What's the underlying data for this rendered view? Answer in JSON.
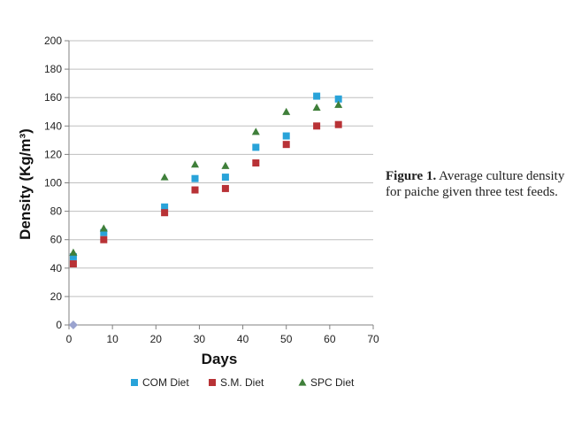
{
  "caption": {
    "label": "Figure 1.",
    "text": "Average culture density for paiche given three test feeds."
  },
  "colors": {
    "com": "#29a3d9",
    "sm": "#b83236",
    "spc": "#3f7f3a",
    "origin": "#9aa3cf",
    "grid": "#bfbfbf"
  },
  "chart_data": {
    "type": "scatter",
    "xlabel": "Days",
    "ylabel": "Density (Kg/m³)",
    "xlim": [
      0,
      70
    ],
    "ylim": [
      0,
      200
    ],
    "xticks": [
      0,
      10,
      20,
      30,
      40,
      50,
      60,
      70
    ],
    "yticks": [
      0,
      20,
      40,
      60,
      80,
      100,
      120,
      140,
      160,
      180,
      200
    ],
    "grid": "horizontal",
    "legend": "bottom",
    "series": [
      {
        "name": "COM Diet",
        "marker": "square",
        "color": "#29a3d9",
        "x": [
          1,
          8,
          22,
          29,
          36,
          43,
          50,
          57,
          62
        ],
        "y": [
          48,
          65,
          83,
          103,
          104,
          125,
          133,
          161,
          159
        ]
      },
      {
        "name": "S.M. Diet",
        "marker": "square",
        "color": "#b83236",
        "x": [
          1,
          8,
          22,
          29,
          36,
          43,
          50,
          57,
          62
        ],
        "y": [
          43,
          60,
          79,
          95,
          96,
          114,
          127,
          140,
          141
        ]
      },
      {
        "name": "SPC Diet",
        "marker": "triangle",
        "color": "#3f7f3a",
        "x": [
          1,
          8,
          22,
          29,
          36,
          43,
          50,
          57,
          62
        ],
        "y": [
          51,
          68,
          104,
          113,
          112,
          136,
          150,
          153,
          155
        ]
      }
    ],
    "origin_point": {
      "x": 1,
      "y": 0
    }
  }
}
